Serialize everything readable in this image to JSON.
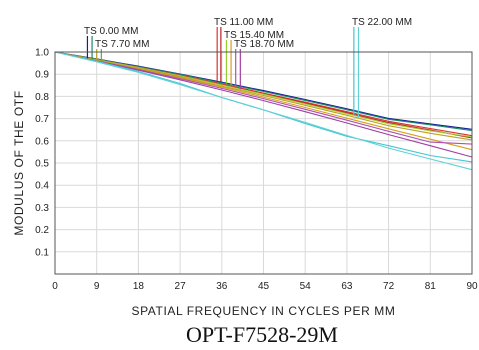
{
  "chart_data": {
    "type": "line",
    "title": "",
    "xlabel": "SPATIAL FREQUENCY IN CYCLES PER MM",
    "ylabel": "MODULUS OF THE OTF",
    "caption": "OPT-F7528-29M",
    "xlim": [
      0,
      90
    ],
    "ylim": [
      0,
      1.0
    ],
    "x_ticks": [
      0,
      9,
      18,
      27,
      36,
      45,
      54,
      63,
      72,
      81,
      90
    ],
    "y_ticks": [
      0.1,
      0.2,
      0.3,
      0.4,
      0.5,
      0.6,
      0.7,
      0.8,
      0.9,
      1.0
    ],
    "x_tick_labels": [
      "0",
      "9",
      "18",
      "27",
      "36",
      "45",
      "54",
      "63",
      "72",
      "81",
      "90"
    ],
    "y_tick_labels": [
      "0.1",
      "0.2",
      "0.3",
      "0.4",
      "0.5",
      "0.6",
      "0.7",
      "0.8",
      "0.9",
      "1.0"
    ],
    "grid": true,
    "field_annotations": [
      {
        "label": "TS 0.00  MM",
        "markers": [
          {
            "x": 7.0,
            "y": 0.972,
            "color": "#1a1a9a"
          },
          {
            "x": 8.0,
            "y": 0.968,
            "color": "#1a8a6a"
          }
        ]
      },
      {
        "label": "TS 7.70  MM",
        "markers": [
          {
            "x": 9.0,
            "y": 0.962,
            "color": "#c0a020"
          },
          {
            "x": 10.0,
            "y": 0.956,
            "color": "#66a066"
          }
        ]
      },
      {
        "label": "TS 11.00  MM",
        "markers": [
          {
            "x": 35.0,
            "y": 0.87,
            "color": "#e03030"
          },
          {
            "x": 35.8,
            "y": 0.866,
            "color": "#c02020"
          }
        ]
      },
      {
        "label": "TS 15.40  MM",
        "markers": [
          {
            "x": 37.0,
            "y": 0.858,
            "color": "#9acd32"
          },
          {
            "x": 38.0,
            "y": 0.852,
            "color": "#d4a020"
          }
        ]
      },
      {
        "label": "TS 18.70  MM",
        "markers": [
          {
            "x": 39.0,
            "y": 0.838,
            "color": "#b050b0"
          },
          {
            "x": 40.0,
            "y": 0.832,
            "color": "#a040a0"
          }
        ]
      },
      {
        "label": "TS 22.00  MM",
        "markers": [
          {
            "x": 64.5,
            "y": 0.715,
            "color": "#40c8d0"
          },
          {
            "x": 65.5,
            "y": 0.705,
            "color": "#60d0d8"
          }
        ]
      }
    ],
    "series": [
      {
        "color": "#1a1a9a",
        "x": [
          0,
          9,
          18,
          27,
          36,
          45,
          54,
          63,
          72,
          81,
          90
        ],
        "y": [
          1.0,
          0.969,
          0.936,
          0.901,
          0.864,
          0.826,
          0.786,
          0.744,
          0.701,
          0.676,
          0.652
        ]
      },
      {
        "color": "#1a8a6a",
        "x": [
          0,
          9,
          18,
          27,
          36,
          45,
          54,
          63,
          72,
          81,
          90
        ],
        "y": [
          1.0,
          0.968,
          0.934,
          0.899,
          0.861,
          0.822,
          0.782,
          0.74,
          0.697,
          0.672,
          0.646
        ]
      },
      {
        "color": "#e03030",
        "x": [
          0,
          9,
          18,
          27,
          36,
          45,
          54,
          63,
          72,
          81,
          90
        ],
        "y": [
          1.0,
          0.966,
          0.931,
          0.895,
          0.856,
          0.815,
          0.774,
          0.731,
          0.688,
          0.655,
          0.623
        ]
      },
      {
        "color": "#c02020",
        "x": [
          0,
          9,
          18,
          27,
          36,
          45,
          54,
          63,
          72,
          81,
          90
        ],
        "y": [
          1.0,
          0.965,
          0.929,
          0.892,
          0.853,
          0.812,
          0.77,
          0.726,
          0.682,
          0.648,
          0.613
        ]
      },
      {
        "color": "#9acd32",
        "x": [
          0,
          9,
          18,
          27,
          36,
          45,
          54,
          63,
          72,
          81,
          90
        ],
        "y": [
          1.0,
          0.965,
          0.93,
          0.893,
          0.852,
          0.81,
          0.766,
          0.722,
          0.677,
          0.645,
          0.617
        ]
      },
      {
        "color": "#c0a020",
        "x": [
          0,
          9,
          18,
          27,
          36,
          45,
          54,
          63,
          72,
          81,
          90
        ],
        "y": [
          1.0,
          0.962,
          0.926,
          0.887,
          0.846,
          0.804,
          0.76,
          0.715,
          0.668,
          0.634,
          0.604
        ]
      },
      {
        "color": "#d4a020",
        "x": [
          0,
          9,
          18,
          27,
          36,
          45,
          54,
          63,
          72,
          81,
          90
        ],
        "y": [
          1.0,
          0.961,
          0.924,
          0.884,
          0.842,
          0.797,
          0.75,
          0.702,
          0.654,
          0.607,
          0.56
        ]
      },
      {
        "color": "#b050b0",
        "x": [
          0,
          9,
          18,
          27,
          36,
          45,
          54,
          63,
          72,
          81,
          90
        ],
        "y": [
          1.0,
          0.96,
          0.921,
          0.88,
          0.836,
          0.79,
          0.742,
          0.693,
          0.643,
          0.594,
          0.585
        ]
      },
      {
        "color": "#a040a0",
        "x": [
          0,
          9,
          18,
          27,
          36,
          45,
          54,
          63,
          72,
          81,
          90
        ],
        "y": [
          1.0,
          0.959,
          0.918,
          0.875,
          0.829,
          0.781,
          0.731,
          0.68,
          0.628,
          0.578,
          0.527
        ]
      },
      {
        "color": "#40c8d0",
        "x": [
          0,
          9,
          18,
          27,
          36,
          45,
          54,
          63,
          72,
          81,
          90
        ],
        "y": [
          1.0,
          0.958,
          0.912,
          0.858,
          0.795,
          0.739,
          0.678,
          0.62,
          0.578,
          0.534,
          0.505
        ]
      },
      {
        "color": "#60d0d8",
        "x": [
          0,
          9,
          18,
          27,
          36,
          45,
          54,
          63,
          72,
          81,
          90
        ],
        "y": [
          1.0,
          0.956,
          0.908,
          0.853,
          0.795,
          0.739,
          0.683,
          0.624,
          0.567,
          0.518,
          0.47
        ]
      }
    ]
  }
}
